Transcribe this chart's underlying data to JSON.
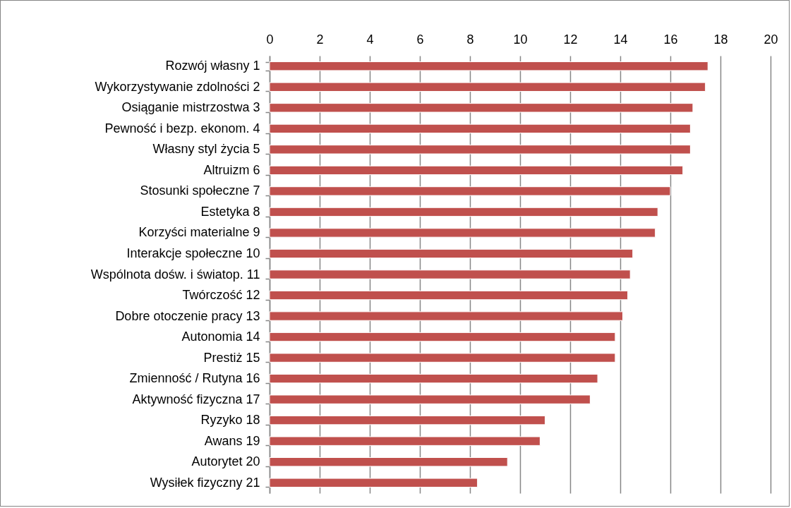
{
  "chart_data": {
    "type": "bar",
    "orientation": "horizontal",
    "categories": [
      "Rozwój własny 1",
      "Wykorzystywanie zdolności 2",
      "Osiąganie mistrzostwa 3",
      "Pewność i bezp. ekonom. 4",
      "Własny styl życia 5",
      "Altruizm 6",
      "Stosunki społeczne 7",
      "Estetyka 8",
      "Korzyści materialne 9",
      "Interakcje społeczne 10",
      "Wspólnota dośw. i światop. 11",
      "Twórczość 12",
      "Dobre otoczenie pracy 13",
      "Autonomia 14",
      "Prestiż 15",
      "Zmienność / Rutyna 16",
      "Aktywność fizyczna 17",
      "Ryzyko 18",
      "Awans 19",
      "Autorytet 20",
      "Wysiłek fizyczny 21"
    ],
    "values": [
      17.5,
      17.4,
      16.9,
      16.8,
      16.8,
      16.5,
      16.0,
      15.5,
      15.4,
      14.5,
      14.4,
      14.3,
      14.1,
      13.8,
      13.8,
      13.1,
      12.8,
      11.0,
      10.8,
      9.5,
      8.3
    ],
    "color": "#c0504d",
    "xlim": [
      0,
      20
    ],
    "xticks": [
      0,
      2,
      4,
      6,
      8,
      10,
      12,
      14,
      16,
      18,
      20
    ],
    "grid": "x"
  }
}
